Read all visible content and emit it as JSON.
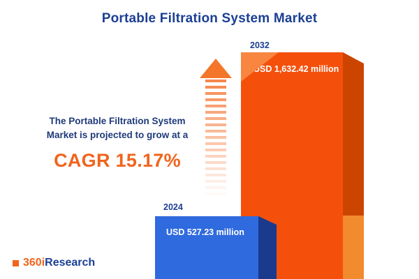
{
  "title": "Portable Filtration System Market",
  "description": {
    "line1": "The Portable Filtration System",
    "line2": "Market is projected to grow at a",
    "cagr": "CAGR 15.17%"
  },
  "chart_data": {
    "type": "bar",
    "title": "Portable Filtration System Market",
    "categories": [
      "2024",
      "2032"
    ],
    "values": [
      527.23,
      1632.42
    ],
    "unit": "USD million",
    "value_labels": [
      "USD 527.23 million",
      "USD 1,632.42 million"
    ],
    "cagr_percent": 15.17,
    "legend_position": "none",
    "grid": false,
    "colors": {
      "bar_2024_front": "#2f6ade",
      "bar_2024_side": "#1a3a8e",
      "bar_2032_front": "#f4500c",
      "bar_2032_side": "#cc4500",
      "accent_orange": "#f0641c",
      "navy": "#1b3f94"
    }
  },
  "icons": {
    "growth_arrow": "upward-dashed-arrow"
  },
  "logo": {
    "prefix": "360i",
    "suffix": "Research"
  }
}
